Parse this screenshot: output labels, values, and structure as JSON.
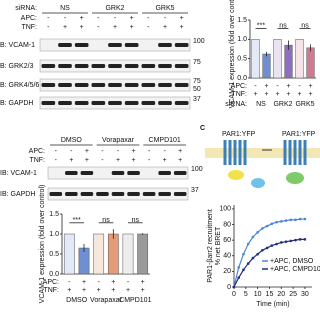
{
  "panel_a_blot": {
    "sirna_label": "siRNA:",
    "groups": [
      "NS",
      "GRK2",
      "GRK5"
    ],
    "apc_label": "APC:",
    "tnf_label": "TNF:",
    "apc": [
      "-",
      "-",
      "+",
      "-",
      "-",
      "+",
      "-",
      "-",
      "+"
    ],
    "tnf": [
      "-",
      "+",
      "+",
      "-",
      "+",
      "+",
      "-",
      "+",
      "+"
    ],
    "rows": [
      {
        "label": "B: VCAM-1",
        "mw": [
          "100"
        ]
      },
      {
        "label": "B: GRK2/3",
        "mw": [
          "75"
        ]
      },
      {
        "label": "B: GRK4/5/6",
        "mw": [
          "75",
          "50"
        ]
      },
      {
        "label": "B: GAPDH",
        "mw": [
          "37"
        ]
      }
    ]
  },
  "panel_a_chart": {
    "y_label": "VCAM-1 expression (fold over control)",
    "ylim": [
      0,
      1.5
    ],
    "yticks": [
      {
        "value": 0,
        "label": "0.0"
      },
      0.5,
      {
        "value": 1,
        "label": "1.0"
      },
      1.5
    ],
    "values": [
      1.0,
      0.62,
      1.0,
      0.85,
      1.0,
      0.78
    ],
    "errors": [
      0,
      0.06,
      0,
      0.12,
      0,
      0.09
    ],
    "colors": [
      "#e3e9f6",
      "#6f8fd0",
      "#ebe3f4",
      "#8d6fbf",
      "#f6e3e8",
      "#d07a8f"
    ],
    "significance": [
      "***",
      "ns",
      "ns"
    ],
    "apc_label": "APC:",
    "tnf_label": "TNF:",
    "apc": [
      "-",
      "+",
      "-",
      "+",
      "-",
      "+"
    ],
    "tnf": [
      "+",
      "+",
      "+",
      "+",
      "+",
      "+"
    ],
    "group_label": "siRNA:",
    "groups": [
      "NS",
      "GRK2",
      "GRK5"
    ]
  },
  "panel_b_blot": {
    "groups": [
      "DMSO",
      "Vorapaxar",
      "CMPD101"
    ],
    "apc_label": "APC:",
    "tnf_label": "TNF:",
    "apc": [
      "-",
      "-",
      "+",
      "-",
      "-",
      "+",
      "-",
      "-",
      "+"
    ],
    "tnf": [
      "-",
      "+",
      "+",
      "-",
      "+",
      "+",
      "-",
      "+",
      "+"
    ],
    "rows": [
      {
        "label": "IB: VCAM-1",
        "mw": [
          "100"
        ]
      },
      {
        "label": "IB: GAPDH",
        "mw": [
          "37"
        ]
      }
    ]
  },
  "panel_b_chart": {
    "y_label": "VCAM-1 expression (fold over control)",
    "ylim": [
      0,
      1.5
    ],
    "yticks": [
      {
        "value": 0,
        "label": "0.0"
      },
      0.5,
      {
        "value": 1,
        "label": "1.0"
      },
      1.5
    ],
    "values": [
      1.0,
      0.65,
      1.0,
      1.0,
      1.0,
      1.0
    ],
    "errors": [
      0,
      0.1,
      0,
      0.12,
      0,
      0.02
    ],
    "colors": [
      "#e3e9f6",
      "#6f8fd0",
      "#f6e6dc",
      "#e59a78",
      "#ececec",
      "#9a9a9a"
    ],
    "significance": [
      "***",
      "ns",
      "ns"
    ],
    "apc_label": "APC:",
    "tnf_label": "TNF:",
    "apc": [
      "-",
      "+",
      "-",
      "+",
      "-",
      "+"
    ],
    "tnf": [
      "+",
      "+",
      "+",
      "+",
      "+",
      "+"
    ],
    "groups": [
      "DMSO",
      "Vorapaxar",
      "CMPD101"
    ]
  },
  "panel_c": {
    "letter": "C",
    "labels": [
      "PAR1:YFP",
      "PAR1:YFP"
    ]
  },
  "panel_c_chart": {
    "y_label": "PAR1-βarr2 recruitment",
    "y_label2": "% net BRET",
    "x_label": "Time (min)",
    "xlim": [
      0,
      33
    ],
    "xticks": [
      0,
      5,
      10,
      15,
      20,
      25,
      30
    ],
    "ylim": [
      0,
      105
    ],
    "yticks": [
      0,
      20,
      40,
      60,
      80,
      100
    ],
    "x": [
      0,
      2,
      4,
      6,
      8,
      10,
      12,
      14,
      16,
      18,
      20,
      22,
      24,
      26,
      28,
      30
    ],
    "series": [
      {
        "name": "+APC, DMSO",
        "color": "#4a86d6",
        "values": [
          0,
          25,
          42,
          55,
          64,
          70,
          75,
          78,
          81,
          83,
          84,
          85,
          86,
          86,
          87,
          87
        ]
      },
      {
        "name": "+APC, CMPD101",
        "color": "#1f2f7a",
        "values": [
          0,
          12,
          22,
          30,
          37,
          42,
          47,
          50,
          53,
          55,
          57,
          58,
          59,
          60,
          61,
          61
        ]
      }
    ]
  }
}
